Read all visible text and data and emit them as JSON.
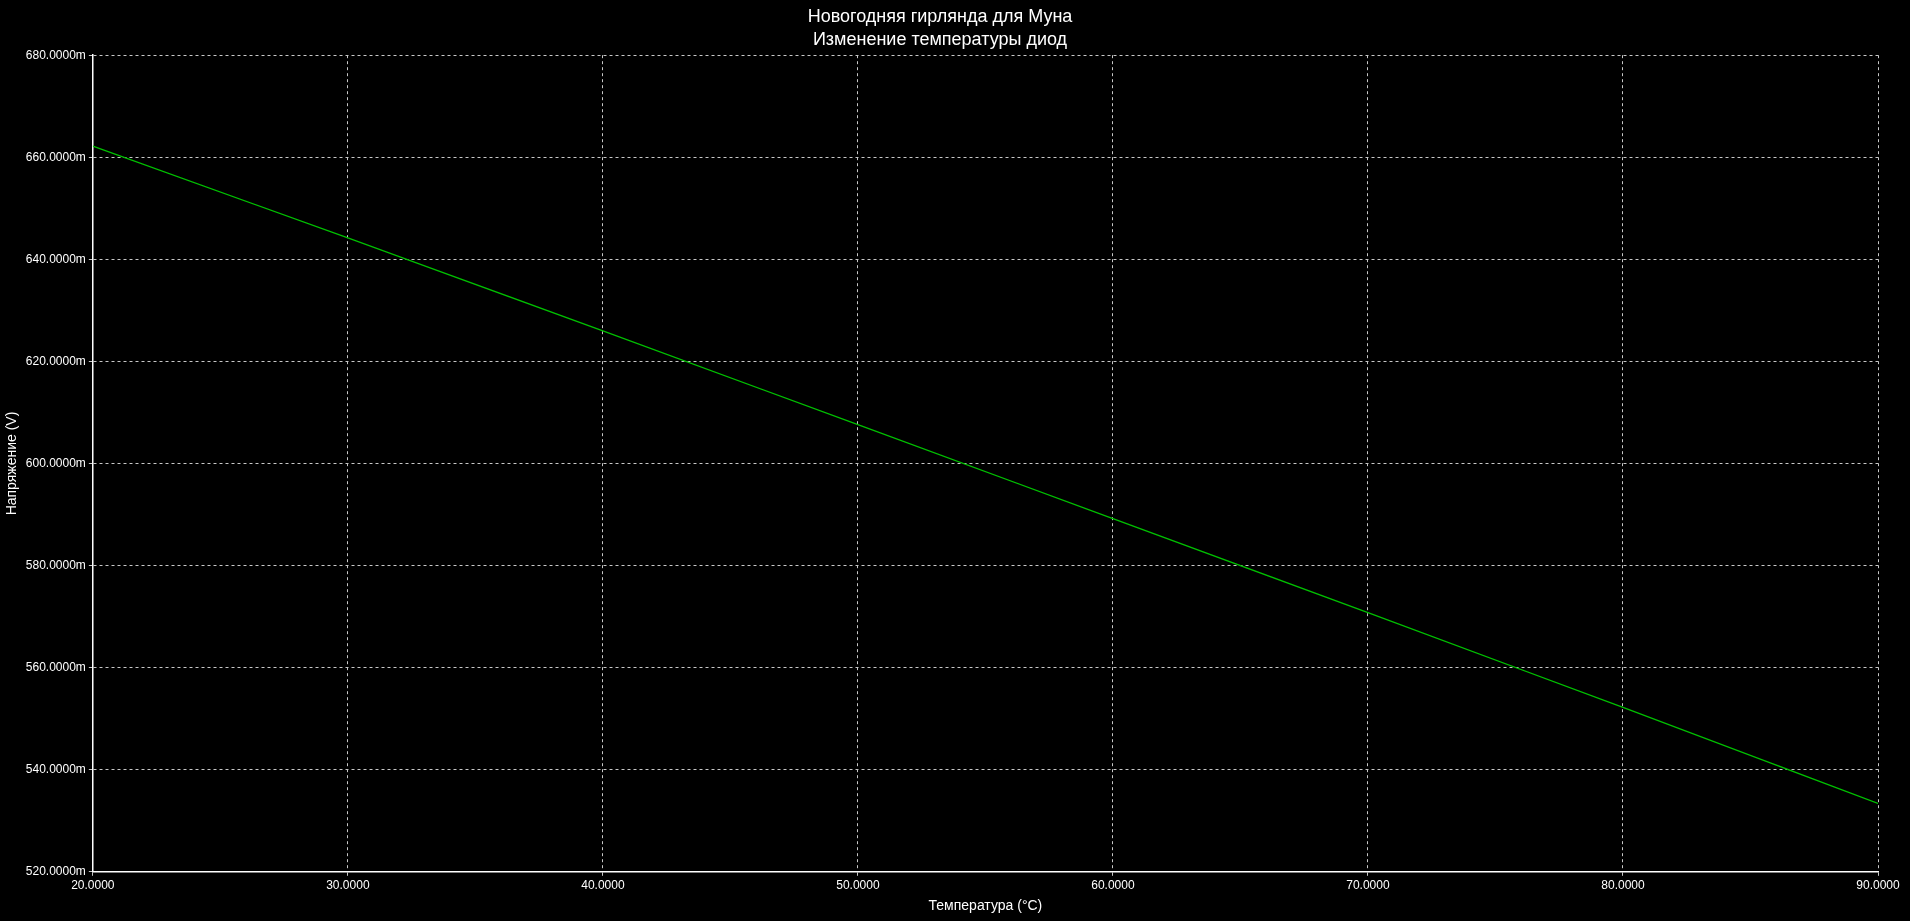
{
  "chart_data": {
    "type": "line",
    "title": "Новогодняя гирлянда для Муна",
    "subtitle": "Изменение температуры диод",
    "xlabel": "Температура (°C)",
    "ylabel": "Напряжение (V)",
    "x": [
      20,
      30,
      40,
      50,
      60,
      70,
      80,
      90
    ],
    "series": [
      {
        "color": "#00c000",
        "values": [
          662.2,
          644.2,
          626.0,
          607.6,
          589.2,
          570.8,
          552.2,
          533.4
        ]
      }
    ],
    "xlim": [
      20,
      90
    ],
    "xticks": [
      {
        "value": 20,
        "label": "20.0000"
      },
      {
        "value": 30,
        "label": "30.0000"
      },
      {
        "value": 40,
        "label": "40.0000"
      },
      {
        "value": 50,
        "label": "50.0000"
      },
      {
        "value": 60,
        "label": "60.0000"
      },
      {
        "value": 70,
        "label": "70.0000"
      },
      {
        "value": 80,
        "label": "80.0000"
      },
      {
        "value": 90,
        "label": "90.0000"
      }
    ],
    "ylim": [
      520,
      680
    ],
    "yticks": [
      {
        "value": 520,
        "label": "520.0000m"
      },
      {
        "value": 540,
        "label": "540.0000m"
      },
      {
        "value": 560,
        "label": "560.0000m"
      },
      {
        "value": 580,
        "label": "580.0000m"
      },
      {
        "value": 600,
        "label": "600.0000m"
      },
      {
        "value": 620,
        "label": "620.0000m"
      },
      {
        "value": 640,
        "label": "640.0000m"
      },
      {
        "value": 660,
        "label": "660.0000m"
      },
      {
        "value": 680,
        "label": "680.0000m"
      }
    ],
    "grid": true,
    "line_style": "solid"
  }
}
